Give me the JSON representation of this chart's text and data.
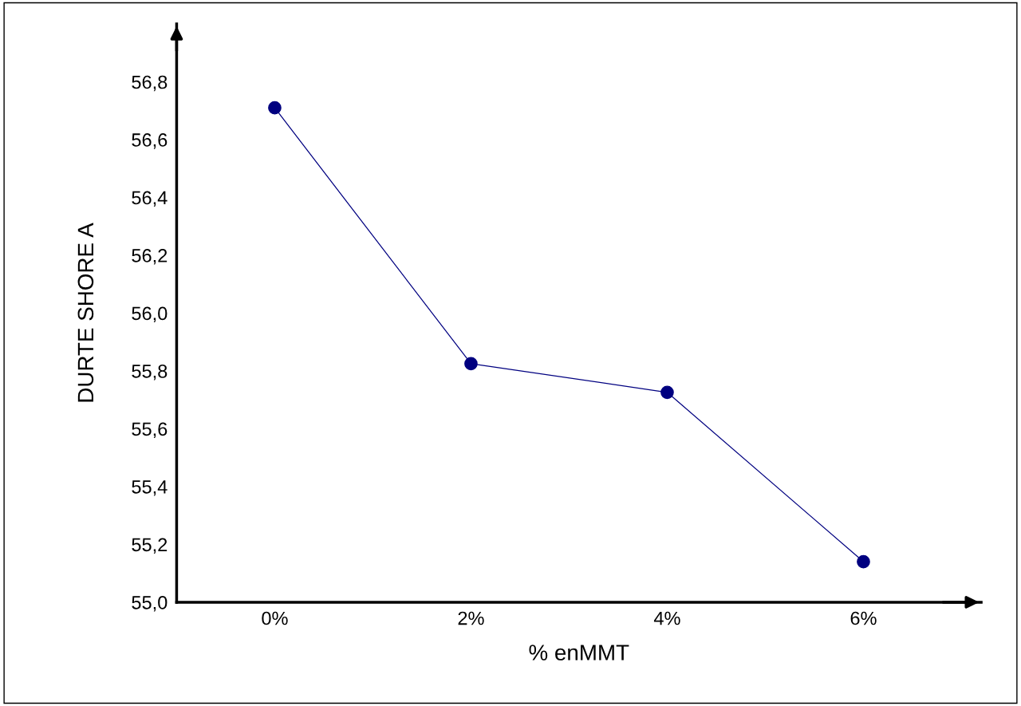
{
  "chart_data": {
    "type": "line",
    "xlabel": "% enMMT",
    "ylabel": "DURTE SHORE A",
    "categories": [
      "0%",
      "2%",
      "4%",
      "6%"
    ],
    "series": [
      {
        "color": "#000080",
        "values": [
          56.71,
          55.825,
          55.726,
          55.14
        ]
      }
    ],
    "ylim": [
      55.0,
      57.0
    ],
    "yticks": [
      {
        "value": 55.0,
        "label": "55,0"
      },
      {
        "value": 55.2,
        "label": "55,2"
      },
      {
        "value": 55.4,
        "label": "55,4"
      },
      {
        "value": 55.6,
        "label": "55,6"
      },
      {
        "value": 55.8,
        "label": "55,8"
      },
      {
        "value": 56.0,
        "label": "56,0"
      },
      {
        "value": 56.2,
        "label": "56,2"
      },
      {
        "value": 56.4,
        "label": "56,4"
      },
      {
        "value": 56.6,
        "label": "56,6"
      },
      {
        "value": 56.8,
        "label": "56,8"
      }
    ],
    "marker": "circle",
    "line_style": "solid",
    "grid": false
  }
}
